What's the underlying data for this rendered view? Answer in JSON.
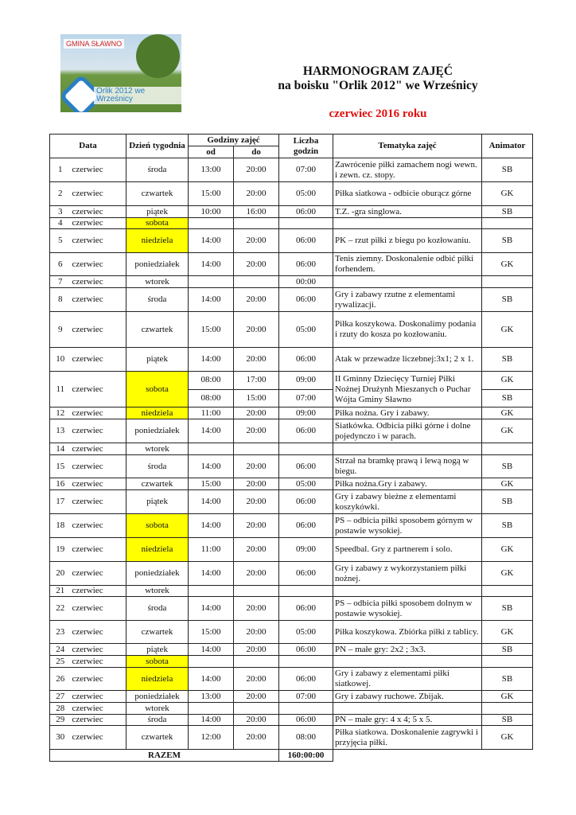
{
  "logo": {
    "brand": "GMINA SŁAWNO",
    "caption": "Orlik 2012 we Wrześnicy"
  },
  "header": {
    "title": "HARMONOGRAM ZAJĘĆ",
    "subtitle": "na boisku \"Orlik 2012\" we Wrześnicy",
    "period": "czerwiec 2016 roku",
    "period_color": "#e01010"
  },
  "table": {
    "columns": {
      "date": "Data",
      "weekday": "Dzień tygodnia",
      "hours": "Godziny zajęć",
      "from": "od",
      "to": "do",
      "count": "Liczba godzin",
      "topic": "Tematyka zajęć",
      "animator": "Animator"
    },
    "highlight_color": "#ffff00",
    "rows": [
      {
        "day": "1",
        "month": "czerwiec",
        "weekday": "środa",
        "from": "13:00",
        "to": "20:00",
        "hours": "07:00",
        "topic": "Zawrócenie piłki zamachem nogi wewn. i zewn. cz. stopy.",
        "animator": "SB"
      },
      {
        "day": "2",
        "month": "czerwiec",
        "weekday": "czwartek",
        "from": "15:00",
        "to": "20:00",
        "hours": "05:00",
        "topic": "Piłka siatkowa - odbicie oburącz górne",
        "animator": "GK"
      },
      {
        "day": "3",
        "month": "czerwiec",
        "weekday": "piątek",
        "from": "10:00",
        "to": "16:00",
        "hours": "06:00",
        "topic": "T.Z. -gra singlowa.",
        "animator": "SB"
      },
      {
        "day": "4",
        "month": "czerwiec",
        "weekday": "sobota",
        "highlight": true,
        "from": "",
        "to": "",
        "hours": "",
        "topic": "",
        "animator": ""
      },
      {
        "day": "5",
        "month": "czerwiec",
        "weekday": "niedziela",
        "highlight": true,
        "from": "14:00",
        "to": "20:00",
        "hours": "06:00",
        "topic": "PK – rzut piłki z biegu po kozłowaniu.",
        "animator": "SB"
      },
      {
        "day": "6",
        "month": "czerwiec",
        "weekday": "poniedziałek",
        "from": "14:00",
        "to": "20:00",
        "hours": "06:00",
        "topic": "Tenis ziemny. Doskonalenie odbić piłki forhendem.",
        "animator": "GK"
      },
      {
        "day": "7",
        "month": "czerwiec",
        "weekday": "wtorek",
        "from": "",
        "to": "",
        "hours": "00:00",
        "topic": "",
        "animator": ""
      },
      {
        "day": "8",
        "month": "czerwiec",
        "weekday": "środa",
        "from": "14:00",
        "to": "20:00",
        "hours": "06:00",
        "topic": "Gry i zabawy rzutne z elementami rywalizacji.",
        "animator": "SB"
      },
      {
        "day": "9",
        "month": "czerwiec",
        "weekday": "czwartek",
        "from": "15:00",
        "to": "20:00",
        "hours": "05:00",
        "topic": "Piłka koszykowa. Doskonalimy podania i rzuty do kosza po kozłowaniu.",
        "animator": "GK"
      },
      {
        "day": "10",
        "month": "czerwiec",
        "weekday": "piątek",
        "from": "14:00",
        "to": "20:00",
        "hours": "06:00",
        "topic": "Atak w przewadze liczebnej:3x1; 2 x 1.",
        "animator": "SB"
      },
      {
        "day": "11",
        "month": "czerwiec",
        "weekday": "sobota",
        "highlight": true,
        "topic": "II Gminny Dziecięcy Turniej Piłki Nożnej Drużynh Mieszanych o Puchar Wójta Gminy Sławno",
        "sessions": [
          {
            "from": "08:00",
            "to": "17:00",
            "hours": "09:00",
            "animator": "GK"
          },
          {
            "from": "08:00",
            "to": "15:00",
            "hours": "07:00",
            "animator": "SB"
          }
        ]
      },
      {
        "day": "12",
        "month": "czerwiec",
        "weekday": "niedziela",
        "highlight": true,
        "from": "11:00",
        "to": "20:00",
        "hours": "09:00",
        "topic": "Piłka nożna. Gry i zabawy.",
        "animator": "GK"
      },
      {
        "day": "13",
        "month": "czerwiec",
        "weekday": "poniedziałek",
        "from": "14:00",
        "to": "20:00",
        "hours": "06:00",
        "topic": "Siatkówka. Odbicia piłki górne i dolne pojedynczo i w parach.",
        "animator": "GK"
      },
      {
        "day": "14",
        "month": "czerwiec",
        "weekday": "wtorek",
        "from": "",
        "to": "",
        "hours": "",
        "topic": "",
        "animator": ""
      },
      {
        "day": "15",
        "month": "czerwiec",
        "weekday": "środa",
        "from": "14:00",
        "to": "20:00",
        "hours": "06:00",
        "topic": "Strzał na bramkę prawą i lewą nogą w biegu.",
        "animator": "SB"
      },
      {
        "day": "16",
        "month": "czerwiec",
        "weekday": "czwartek",
        "from": "15:00",
        "to": "20:00",
        "hours": "05:00",
        "topic": "Piłka nożna.Gry i zabawy.",
        "animator": "GK"
      },
      {
        "day": "17",
        "month": "czerwiec",
        "weekday": "piątek",
        "from": "14:00",
        "to": "20:00",
        "hours": "06:00",
        "topic": "Gry i zabawy bieżne z elementami koszykówki.",
        "animator": "SB"
      },
      {
        "day": "18",
        "month": "czerwiec",
        "weekday": "sobota",
        "highlight": true,
        "from": "14:00",
        "to": "20:00",
        "hours": "06:00",
        "topic": "PS – odbicia piłki sposobem górnym w postawie wysokiej.",
        "animator": "SB"
      },
      {
        "day": "19",
        "month": "czerwiec",
        "weekday": "niedziela",
        "highlight": true,
        "from": "11:00",
        "to": "20:00",
        "hours": "09:00",
        "topic": "Speedbal. Gry z partnerem i solo.",
        "animator": "GK"
      },
      {
        "day": "20",
        "month": "czerwiec",
        "weekday": "poniedziałek",
        "from": "14:00",
        "to": "20:00",
        "hours": "06:00",
        "topic": "Gry i zabawy z wykorzystaniem piłki nożnej.",
        "animator": "GK"
      },
      {
        "day": "21",
        "month": "czerwiec",
        "weekday": "wtorek",
        "from": "",
        "to": "",
        "hours": "",
        "topic": "",
        "animator": ""
      },
      {
        "day": "22",
        "month": "czerwiec",
        "weekday": "środa",
        "from": "14:00",
        "to": "20:00",
        "hours": "06:00",
        "topic": "PS – odbicia piłki sposobem dolnym w postawie wysokiej.",
        "animator": "SB"
      },
      {
        "day": "23",
        "month": "czerwiec",
        "weekday": "czwartek",
        "from": "15:00",
        "to": "20:00",
        "hours": "05:00",
        "topic": "Piłka koszykowa. Zbiórka piłki z tablicy.",
        "animator": "GK"
      },
      {
        "day": "24",
        "month": "czerwiec",
        "weekday": "piątek",
        "from": "14:00",
        "to": "20:00",
        "hours": "06:00",
        "topic": "PN – małe gry: 2x2 ; 3x3.",
        "animator": "SB"
      },
      {
        "day": "25",
        "month": "czerwiec",
        "weekday": "sobota",
        "highlight": true,
        "from": "",
        "to": "",
        "hours": "",
        "topic": "",
        "animator": ""
      },
      {
        "day": "26",
        "month": "czerwiec",
        "weekday": "niedziela",
        "highlight": true,
        "from": "14:00",
        "to": "20:00",
        "hours": "06:00",
        "topic": "Gry i zabawy z elementami piłki siatkowej.",
        "animator": "SB"
      },
      {
        "day": "27",
        "month": "czerwiec",
        "weekday": "poniedziałek",
        "from": "13:00",
        "to": "20:00",
        "hours": "07:00",
        "topic": "Gry i zabawy ruchowe. Zbijak.",
        "animator": "GK"
      },
      {
        "day": "28",
        "month": "czerwiec",
        "weekday": "wtorek",
        "from": "",
        "to": "",
        "hours": "",
        "topic": "",
        "animator": ""
      },
      {
        "day": "29",
        "month": "czerwiec",
        "weekday": "środa",
        "from": "14:00",
        "to": "20:00",
        "hours": "06:00",
        "topic": "PN – małe gry: 4 x 4; 5 x 5.",
        "animator": "SB"
      },
      {
        "day": "30",
        "month": "czerwiec",
        "weekday": "czwartek",
        "from": "12:00",
        "to": "20:00",
        "hours": "08:00",
        "topic": "Piłka siatkowa. Doskonalenie zagrywki i przyjęcia piłki.",
        "animator": "GK"
      }
    ],
    "total": {
      "label": "RAZEM",
      "value": "160:00:00"
    }
  }
}
